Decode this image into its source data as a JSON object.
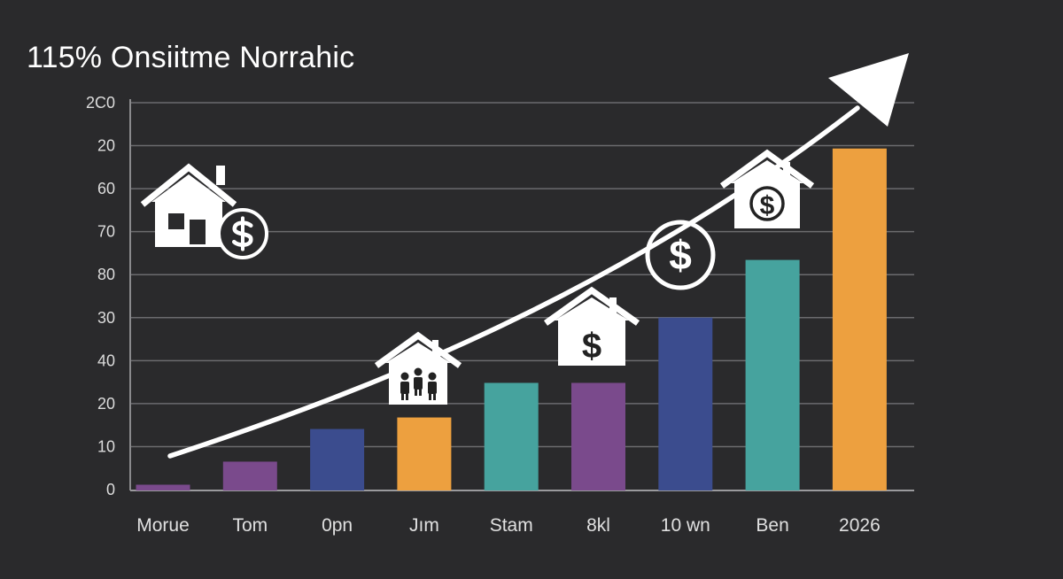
{
  "title": "115% Onsiitme Norrahic",
  "colors": {
    "background": "#2a2a2c",
    "purple": "#7a4a8c",
    "blue": "#3b4c8e",
    "orange": "#eda03f",
    "teal": "#46a39e",
    "arrow": "#ffffff",
    "grid": "#6b6b6e"
  },
  "icons": [
    {
      "name": "house-dollar-icon",
      "near": "top-left"
    },
    {
      "name": "house-people-icon",
      "near": "Jım"
    },
    {
      "name": "house-dollar-icon",
      "near": "8kl"
    },
    {
      "name": "dollar-circle-icon",
      "near": "10 wn"
    },
    {
      "name": "house-dollar-icon",
      "near": "Ben"
    }
  ],
  "chart_data": {
    "type": "bar",
    "title": "115% Onsiitme Norrahic",
    "categories": [
      "Morue",
      "Tom",
      "0pn",
      "Jım",
      "Stam",
      "8kl",
      "10 wn",
      "Ben",
      "2026"
    ],
    "values": [
      1.5,
      7.5,
      16,
      19,
      28,
      28,
      45,
      60,
      89
    ],
    "bar_colors": [
      "#7a4a8c",
      "#7a4a8c",
      "#3b4c8e",
      "#eda03f",
      "#46a39e",
      "#7a4a8c",
      "#3b4c8e",
      "#46a39e",
      "#eda03f"
    ],
    "y_tick_labels": [
      "0",
      "10",
      "20",
      "40",
      "30",
      "80",
      "70",
      "60",
      "20",
      "2C0"
    ],
    "ylim": [
      0,
      100
    ],
    "grid": true,
    "legend": "none",
    "trend": "upward-arrow"
  }
}
